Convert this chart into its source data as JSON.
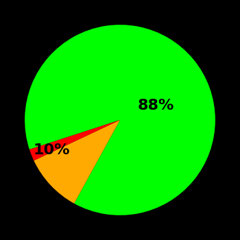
{
  "slices": [
    88,
    10,
    2
  ],
  "colors": [
    "#00ff00",
    "#ffaa00",
    "#ff0000"
  ],
  "labels": [
    "88%",
    "10%",
    ""
  ],
  "background_color": "#000000",
  "text_color": "#000000",
  "label_fontsize": 16,
  "label_fontweight": "bold",
  "startangle": 198,
  "figsize": [
    3.5,
    3.5
  ],
  "dpi": 100
}
